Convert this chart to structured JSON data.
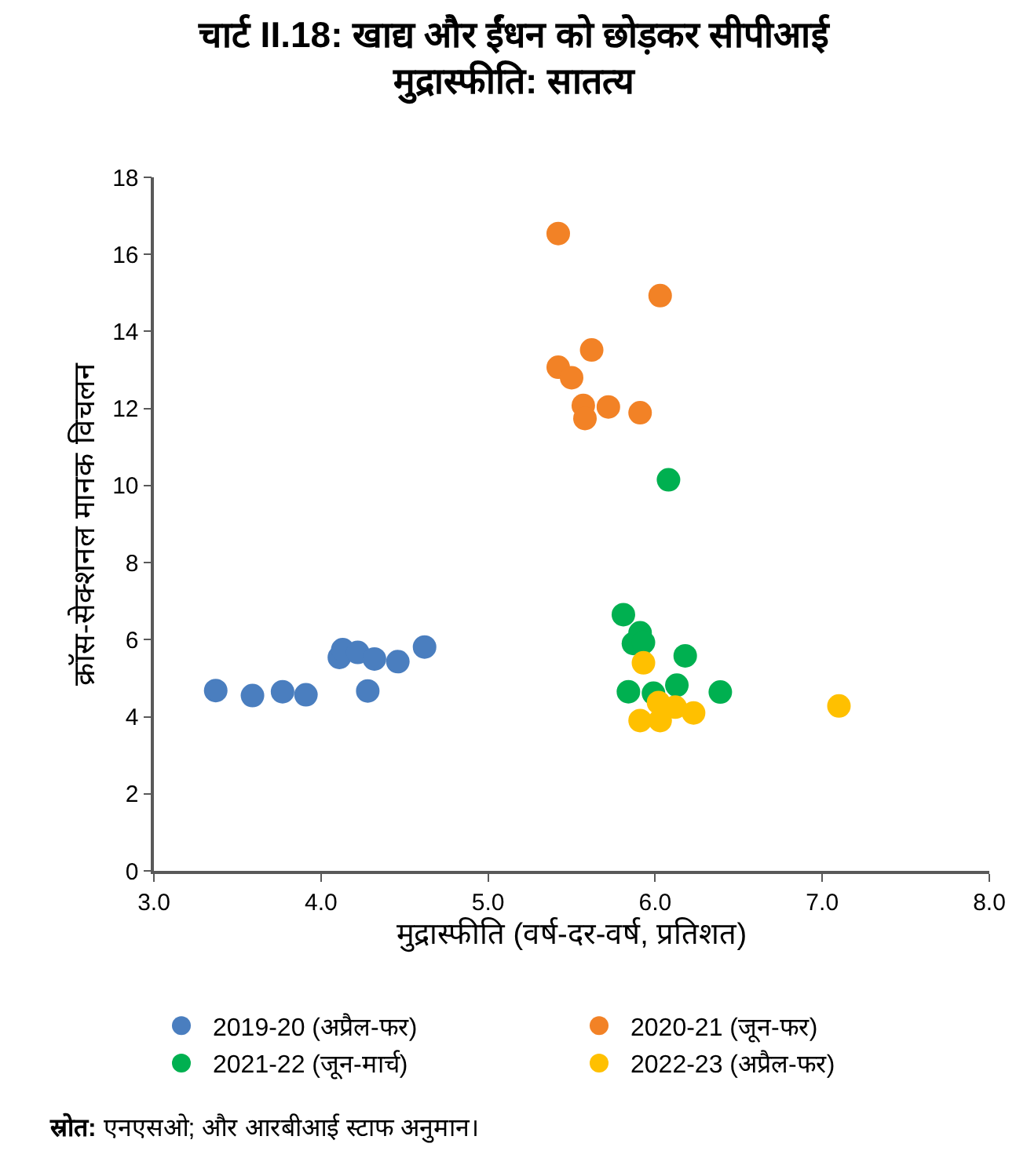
{
  "chart_data": {
    "type": "scatter",
    "title": "चार्ट II.18: खाद्य और ईंधन को छोड़कर सीपीआई\nमुद्रास्फीति: सातत्य",
    "xlabel": "मुद्रास्फीति (वर्ष-दर-वर्ष, प्रतिशत)",
    "ylabel": "क्रॉस-सेक्शनल मानक विचलन",
    "xlim": [
      3,
      8
    ],
    "xticks": [
      {
        "value": 3,
        "label": "3.0"
      },
      {
        "value": 4,
        "label": "4.0"
      },
      {
        "value": 5,
        "label": "5.0"
      },
      {
        "value": 6,
        "label": "6.0"
      },
      {
        "value": 7,
        "label": "7.0"
      },
      {
        "value": 8,
        "label": "8.0"
      }
    ],
    "ylim": [
      0,
      18
    ],
    "yticks": [
      0,
      2,
      4,
      6,
      8,
      10,
      12,
      14,
      16,
      18
    ],
    "legend": "bottom",
    "marker": "circle",
    "series": [
      {
        "name": "2019-20 (अप्रैल-फर)",
        "color": "#4a7ebf",
        "x": [
          3.37,
          3.59,
          3.77,
          3.91,
          4.11,
          4.13,
          4.22,
          4.32,
          4.28,
          4.46,
          4.62
        ],
        "values": [
          4.68,
          4.55,
          4.65,
          4.57,
          5.54,
          5.74,
          5.67,
          5.5,
          4.67,
          5.43,
          5.81
        ]
      },
      {
        "name": "2020-21 (जून-फर)",
        "color": "#f28226",
        "x": [
          5.42,
          6.03,
          5.62,
          5.42,
          5.5,
          5.57,
          5.58,
          5.72,
          5.91
        ],
        "values": [
          16.54,
          14.93,
          13.52,
          13.07,
          12.8,
          12.08,
          11.74,
          12.04,
          11.89
        ]
      },
      {
        "name": "2021-22 (जून-मार्च)",
        "color": "#00b050",
        "x": [
          6.08,
          5.81,
          5.91,
          5.87,
          5.93,
          6.18,
          5.84,
          5.99,
          6.13,
          6.39
        ],
        "values": [
          10.15,
          6.65,
          6.18,
          5.9,
          5.93,
          5.58,
          4.65,
          4.61,
          4.82,
          4.64
        ]
      },
      {
        "name": "2022-23 (अप्रैल-फर)",
        "color": "#ffc000",
        "x": [
          5.93,
          6.02,
          6.12,
          6.23,
          5.91,
          6.03,
          7.1
        ],
        "values": [
          5.4,
          4.37,
          4.25,
          4.1,
          3.9,
          3.9,
          4.28
        ]
      }
    ],
    "annotations": [
      "स्रोत: एनएसओ; और आरबीआई स्टाफ अनुमान।"
    ]
  }
}
